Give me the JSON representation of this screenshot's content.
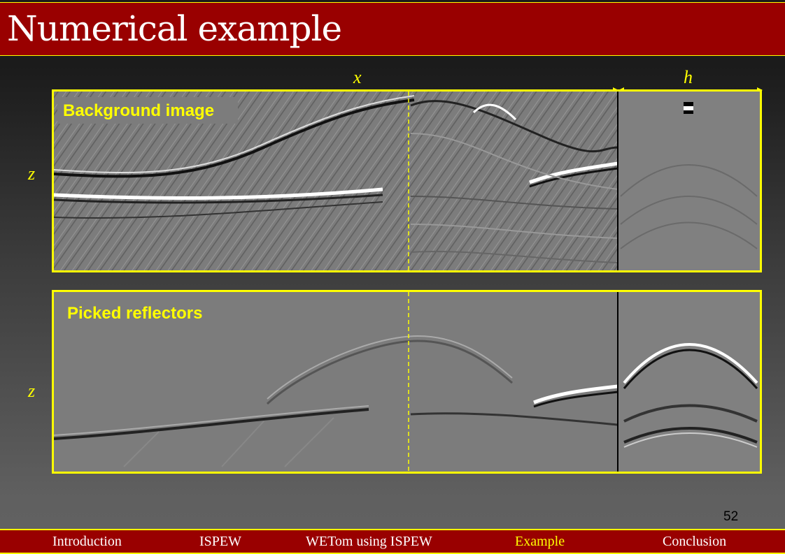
{
  "slide": {
    "title": "Numerical example",
    "page_number": "52"
  },
  "axes": {
    "x": "x",
    "h": "h",
    "z_top": "z",
    "z_bottom": "z"
  },
  "panels": [
    {
      "label": "Background image"
    },
    {
      "label": "Picked reflectors"
    }
  ],
  "navigation": {
    "items": [
      {
        "label": "Introduction",
        "active": false
      },
      {
        "label": "ISPEW",
        "active": false
      },
      {
        "label": "WETom using ISPEW",
        "active": false
      },
      {
        "label": "Example",
        "active": true
      },
      {
        "label": "Conclusion",
        "active": false
      }
    ]
  },
  "colors": {
    "title_bar": "#990000",
    "accent": "#ffff00",
    "nav_active": "#ffff00"
  }
}
